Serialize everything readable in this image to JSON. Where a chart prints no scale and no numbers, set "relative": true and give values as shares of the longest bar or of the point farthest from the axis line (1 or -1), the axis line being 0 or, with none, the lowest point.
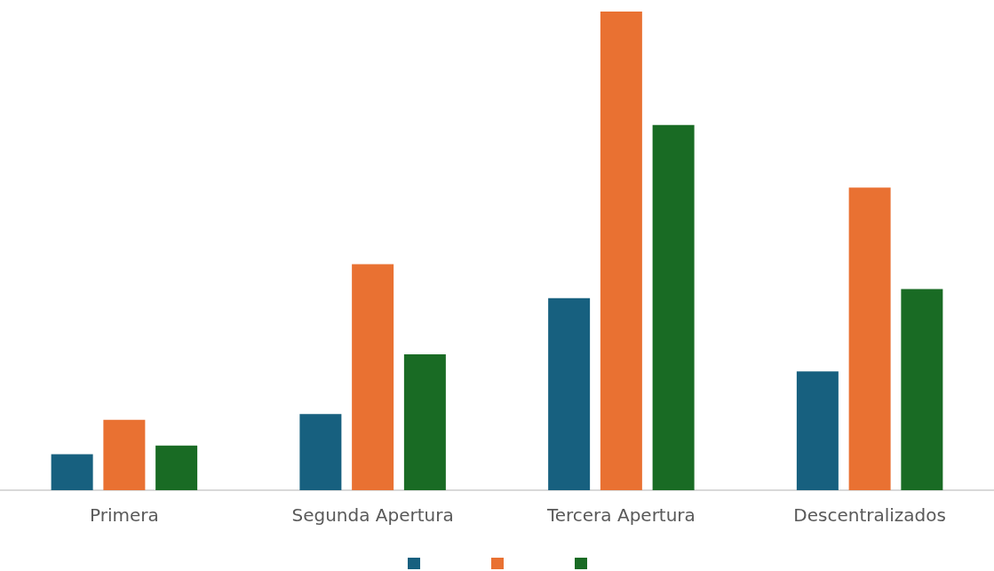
{
  "chart_data": {
    "type": "bar",
    "relative": true,
    "categories": [
      "Primera",
      "Segunda Apertura",
      "Tercera Apertura",
      "Descentralizados"
    ],
    "series": [
      {
        "color": "#17607f",
        "values": [
          0.075,
          0.159,
          0.401,
          0.248
        ]
      },
      {
        "color": "#e97132",
        "values": [
          0.147,
          0.472,
          1,
          0.632
        ]
      },
      {
        "color": "#196b24",
        "values": [
          0.093,
          0.284,
          0.763,
          0.42
        ]
      }
    ],
    "grid": false
  }
}
